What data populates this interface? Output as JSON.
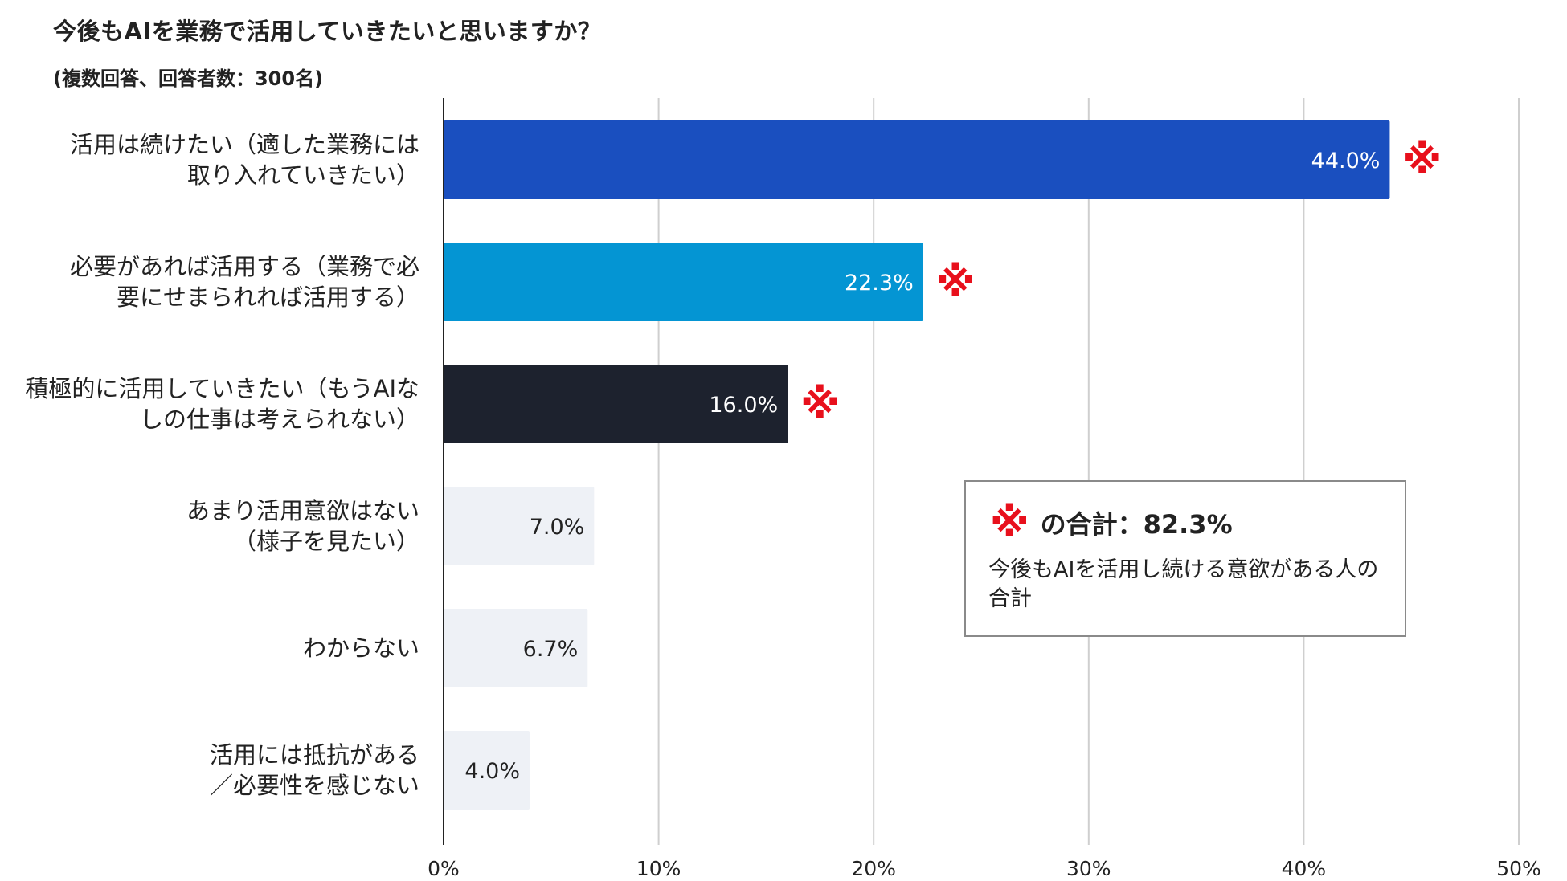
{
  "chart_data": {
    "type": "bar",
    "orientation": "horizontal",
    "title": "今後もAIを業務で活用していきたいと思いますか？",
    "subtitle": "(複数回答、回答者数：300名)",
    "categories": [
      [
        "活用は続けたい（適した業務には",
        "取り入れていきたい）"
      ],
      [
        "必要があれば活用する（業務で必",
        "要にせまられれば活用する）"
      ],
      [
        "積極的に活用していきたい（もうAIな",
        "しの仕事は考えられない）"
      ],
      [
        "あまり活用意欲はない",
        "（様子を見たい）"
      ],
      [
        "わからない"
      ],
      [
        "活用には抵抗がある",
        "／必要性を感じない"
      ]
    ],
    "values": [
      44.0,
      22.3,
      16.0,
      7.0,
      6.7,
      4.0
    ],
    "value_labels": [
      "44.0%",
      "22.3%",
      "16.0%",
      "7.0%",
      "6.7%",
      "4.0%"
    ],
    "bar_colors": [
      "#1a4fbf",
      "#0495d3",
      "#1d222e",
      "#eef1f6",
      "#eef1f6",
      "#eef1f6"
    ],
    "label_colors": [
      "#ffffff",
      "#ffffff",
      "#ffffff",
      "#222222",
      "#222222",
      "#222222"
    ],
    "marked": [
      true,
      true,
      true,
      false,
      false,
      false
    ],
    "mark_symbol": "※",
    "mark_color": "#e8101c",
    "xlim": [
      0,
      50
    ],
    "xticks": [
      0,
      10,
      20,
      30,
      40,
      50
    ],
    "xtick_labels": [
      "0%",
      "10%",
      "20%",
      "30%",
      "40%",
      "50%"
    ],
    "grid": true,
    "legend": {
      "mark": "※",
      "title": "の合計：82.3%",
      "description": "今後もAIを活用し続ける意欲がある人の合計"
    }
  }
}
